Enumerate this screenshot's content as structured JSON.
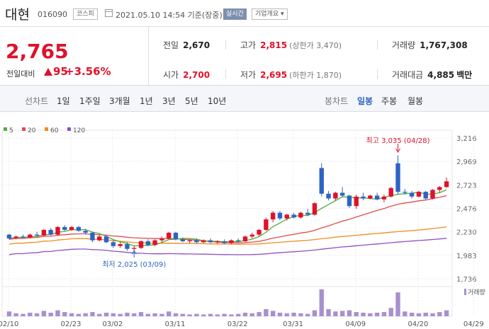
{
  "header": {
    "stock_name": "대현",
    "stock_code": "016090",
    "market": "코스피",
    "datetime": "2021.05.10 14:54 기준(장중)",
    "realtime_label": "실시간",
    "company_info_label": "기업개요 ▾"
  },
  "price": {
    "current": "2,765",
    "change_label": "전일대비",
    "change_value": "95",
    "change_pct": "+3.56%"
  },
  "stats": {
    "prev_close_label": "전일",
    "prev_close": "2,670",
    "high_label": "고가",
    "high": "2,815",
    "upper_limit": "(상한가 3,470)",
    "volume_label": "거래량",
    "volume": "1,767,308",
    "open_label": "시가",
    "open": "2,700",
    "low_label": "저가",
    "low": "2,695",
    "lower_limit": "(하한가 1,870)",
    "amount_label": "거래대금",
    "amount": "4,885",
    "amount_unit": "백만"
  },
  "period_tabs": {
    "line_label": "선차트",
    "line_items": [
      "1일",
      "1주일",
      "3개월",
      "1년",
      "3년",
      "5년",
      "10년"
    ],
    "candle_label": "봉차트",
    "candle_items": [
      "일봉",
      "주봉",
      "월봉"
    ],
    "active": "일봉"
  },
  "colors": {
    "up": "#e0112b",
    "down": "#2d64c4",
    "accent": "#7d8fae"
  },
  "chart_data": {
    "type": "candlestick",
    "legend": [
      {
        "name": "5",
        "color": "#4caf3a"
      },
      {
        "name": "20",
        "color": "#e34a4a"
      },
      {
        "name": "60",
        "color": "#f08c1e"
      },
      {
        "name": "120",
        "color": "#8f4fc4"
      }
    ],
    "y_ticks": [
      "3,216",
      "2,969",
      "2,723",
      "2,476",
      "2,230",
      "1,983",
      "1,736"
    ],
    "ylim": [
      1736,
      3216
    ],
    "x_ticks": [
      "02/10",
      "02/23",
      "03/02",
      "03/11",
      "03/22",
      "03/31",
      "04/09",
      "04/20",
      "04/29"
    ],
    "annotations": {
      "high": "최고 3,035 (04/28)",
      "low": "최저 2,025 (03/09)"
    },
    "volume_label": "거래량",
    "candles": [
      [
        2200,
        2210,
        2150,
        2160
      ],
      [
        2165,
        2190,
        2150,
        2180
      ],
      [
        2180,
        2200,
        2160,
        2170
      ],
      [
        2170,
        2210,
        2160,
        2200
      ],
      [
        2200,
        2230,
        2180,
        2190
      ],
      [
        2190,
        2260,
        2180,
        2250
      ],
      [
        2250,
        2270,
        2190,
        2200
      ],
      [
        2200,
        2290,
        2190,
        2280
      ],
      [
        2280,
        2300,
        2240,
        2250
      ],
      [
        2250,
        2290,
        2240,
        2280
      ],
      [
        2280,
        2290,
        2230,
        2240
      ],
      [
        2240,
        2260,
        2200,
        2220
      ],
      [
        2220,
        2230,
        2120,
        2140
      ],
      [
        2140,
        2200,
        2130,
        2180
      ],
      [
        2180,
        2190,
        2110,
        2120
      ],
      [
        2120,
        2140,
        2060,
        2080
      ],
      [
        2080,
        2120,
        2060,
        2100
      ],
      [
        2100,
        2120,
        2030,
        2050
      ],
      [
        2050,
        2080,
        2025,
        2060
      ],
      [
        2060,
        2140,
        2050,
        2130
      ],
      [
        2130,
        2150,
        2080,
        2090
      ],
      [
        2090,
        2150,
        2080,
        2140
      ],
      [
        2140,
        2180,
        2120,
        2160
      ],
      [
        2160,
        2230,
        2150,
        2220
      ],
      [
        2220,
        2230,
        2140,
        2150
      ],
      [
        2150,
        2170,
        2120,
        2130
      ],
      [
        2130,
        2150,
        2110,
        2140
      ],
      [
        2140,
        2160,
        2110,
        2120
      ],
      [
        2120,
        2150,
        2110,
        2140
      ],
      [
        2140,
        2160,
        2110,
        2120
      ],
      [
        2120,
        2140,
        2100,
        2130
      ],
      [
        2130,
        2150,
        2100,
        2110
      ],
      [
        2110,
        2150,
        2100,
        2140
      ],
      [
        2140,
        2160,
        2120,
        2130
      ],
      [
        2130,
        2190,
        2120,
        2180
      ],
      [
        2180,
        2220,
        2160,
        2200
      ],
      [
        2200,
        2260,
        2180,
        2250
      ],
      [
        2250,
        2380,
        2240,
        2360
      ],
      [
        2360,
        2450,
        2330,
        2430
      ],
      [
        2430,
        2450,
        2350,
        2370
      ],
      [
        2370,
        2420,
        2350,
        2410
      ],
      [
        2410,
        2430,
        2370,
        2380
      ],
      [
        2380,
        2440,
        2370,
        2430
      ],
      [
        2430,
        2470,
        2400,
        2410
      ],
      [
        2410,
        2540,
        2400,
        2530
      ],
      [
        2900,
        2950,
        2600,
        2630
      ],
      [
        2630,
        2660,
        2560,
        2580
      ],
      [
        2580,
        2650,
        2560,
        2640
      ],
      [
        2640,
        2700,
        2600,
        2610
      ],
      [
        2610,
        2620,
        2480,
        2500
      ],
      [
        2500,
        2620,
        2470,
        2600
      ],
      [
        2600,
        2640,
        2560,
        2580
      ],
      [
        2580,
        2620,
        2570,
        2610
      ],
      [
        2610,
        2640,
        2560,
        2570
      ],
      [
        2570,
        2620,
        2540,
        2600
      ],
      [
        2600,
        2700,
        2590,
        2690
      ],
      [
        2950,
        3035,
        2620,
        2650
      ],
      [
        2650,
        2680,
        2620,
        2640
      ],
      [
        2640,
        2660,
        2580,
        2600
      ],
      [
        2600,
        2660,
        2590,
        2650
      ],
      [
        2650,
        2660,
        2560,
        2580
      ],
      [
        2580,
        2680,
        2570,
        2670
      ],
      [
        2670,
        2710,
        2640,
        2700
      ],
      [
        2700,
        2800,
        2690,
        2760
      ]
    ],
    "volumes": [
      8,
      5,
      4,
      6,
      5,
      9,
      6,
      10,
      7,
      5,
      4,
      5,
      7,
      4,
      6,
      5,
      4,
      6,
      5,
      7,
      4,
      5,
      4,
      8,
      5,
      4,
      3,
      4,
      3,
      4,
      3,
      4,
      3,
      4,
      6,
      5,
      7,
      12,
      9,
      6,
      5,
      6,
      5,
      4,
      10,
      45,
      12,
      8,
      9,
      10,
      7,
      6,
      5,
      6,
      7,
      14,
      40,
      8,
      6,
      5,
      6,
      5,
      7,
      10
    ]
  }
}
